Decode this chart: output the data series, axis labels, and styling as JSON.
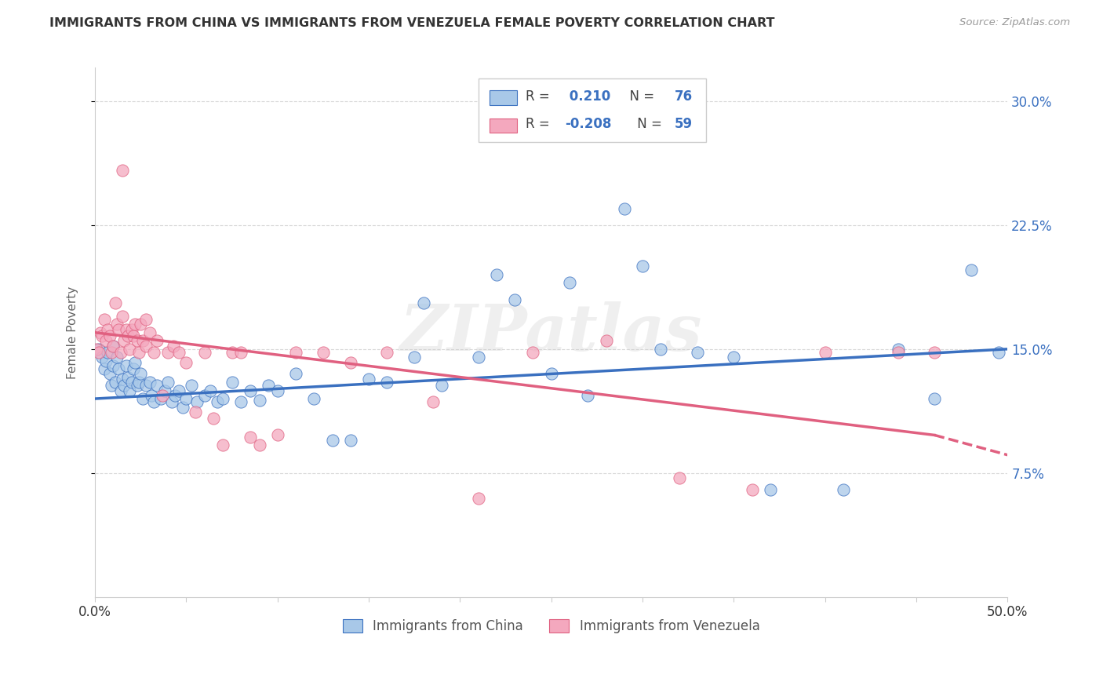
{
  "title": "IMMIGRANTS FROM CHINA VS IMMIGRANTS FROM VENEZUELA FEMALE POVERTY CORRELATION CHART",
  "source": "Source: ZipAtlas.com",
  "ylabel": "Female Poverty",
  "xlim": [
    0.0,
    0.5
  ],
  "ylim": [
    0.0,
    0.32
  ],
  "yticks": [
    0.075,
    0.15,
    0.225,
    0.3
  ],
  "ytick_labels": [
    "7.5%",
    "15.0%",
    "22.5%",
    "30.0%"
  ],
  "legend_r_china": "0.210",
  "legend_n_china": "76",
  "legend_r_venezuela": "-0.208",
  "legend_n_venezuela": "59",
  "color_china": "#a8c8e8",
  "color_venezuela": "#f4a8be",
  "line_china_color": "#3a70c0",
  "line_venezuela_color": "#e06080",
  "background_color": "#ffffff",
  "grid_color": "#d8d8d8",
  "watermark": "ZIPatlas",
  "trendline_china": [
    0.0,
    0.5,
    0.12,
    0.15
  ],
  "trendline_venezuela_solid": [
    0.0,
    0.46,
    0.16,
    0.098
  ],
  "trendline_venezuela_dash": [
    0.46,
    0.5,
    0.098,
    0.086
  ],
  "china_x": [
    0.002,
    0.004,
    0.005,
    0.006,
    0.007,
    0.008,
    0.009,
    0.01,
    0.01,
    0.011,
    0.012,
    0.013,
    0.014,
    0.015,
    0.016,
    0.017,
    0.018,
    0.019,
    0.02,
    0.021,
    0.022,
    0.023,
    0.024,
    0.025,
    0.026,
    0.028,
    0.03,
    0.031,
    0.032,
    0.034,
    0.036,
    0.038,
    0.04,
    0.042,
    0.044,
    0.046,
    0.048,
    0.05,
    0.053,
    0.056,
    0.06,
    0.063,
    0.067,
    0.07,
    0.075,
    0.08,
    0.085,
    0.09,
    0.095,
    0.1,
    0.11,
    0.12,
    0.13,
    0.14,
    0.15,
    0.16,
    0.175,
    0.19,
    0.21,
    0.23,
    0.25,
    0.27,
    0.3,
    0.33,
    0.37,
    0.41,
    0.44,
    0.46,
    0.48,
    0.495,
    0.22,
    0.26,
    0.18,
    0.35,
    0.31,
    0.29
  ],
  "china_y": [
    0.15,
    0.145,
    0.138,
    0.143,
    0.148,
    0.135,
    0.128,
    0.14,
    0.152,
    0.13,
    0.145,
    0.138,
    0.125,
    0.132,
    0.128,
    0.14,
    0.133,
    0.125,
    0.13,
    0.138,
    0.142,
    0.128,
    0.13,
    0.135,
    0.12,
    0.128,
    0.13,
    0.122,
    0.118,
    0.128,
    0.12,
    0.125,
    0.13,
    0.118,
    0.122,
    0.125,
    0.115,
    0.12,
    0.128,
    0.118,
    0.122,
    0.125,
    0.118,
    0.12,
    0.13,
    0.118,
    0.125,
    0.119,
    0.128,
    0.125,
    0.135,
    0.12,
    0.095,
    0.095,
    0.132,
    0.13,
    0.145,
    0.128,
    0.145,
    0.18,
    0.135,
    0.122,
    0.2,
    0.148,
    0.065,
    0.065,
    0.15,
    0.12,
    0.198,
    0.148,
    0.195,
    0.19,
    0.178,
    0.145,
    0.15,
    0.235
  ],
  "venezuela_x": [
    0.001,
    0.002,
    0.003,
    0.004,
    0.005,
    0.006,
    0.007,
    0.008,
    0.009,
    0.01,
    0.011,
    0.012,
    0.013,
    0.014,
    0.015,
    0.016,
    0.017,
    0.018,
    0.019,
    0.02,
    0.021,
    0.022,
    0.023,
    0.024,
    0.025,
    0.026,
    0.028,
    0.03,
    0.032,
    0.034,
    0.037,
    0.04,
    0.043,
    0.046,
    0.05,
    0.055,
    0.06,
    0.065,
    0.07,
    0.075,
    0.08,
    0.085,
    0.09,
    0.1,
    0.11,
    0.125,
    0.14,
    0.16,
    0.185,
    0.21,
    0.24,
    0.28,
    0.32,
    0.36,
    0.4,
    0.44,
    0.46,
    0.015,
    0.028
  ],
  "venezuela_y": [
    0.15,
    0.148,
    0.16,
    0.158,
    0.168,
    0.155,
    0.162,
    0.158,
    0.148,
    0.152,
    0.178,
    0.165,
    0.162,
    0.148,
    0.17,
    0.155,
    0.162,
    0.158,
    0.15,
    0.162,
    0.158,
    0.165,
    0.155,
    0.148,
    0.165,
    0.155,
    0.152,
    0.16,
    0.148,
    0.155,
    0.122,
    0.148,
    0.152,
    0.148,
    0.142,
    0.112,
    0.148,
    0.108,
    0.092,
    0.148,
    0.148,
    0.097,
    0.092,
    0.098,
    0.148,
    0.148,
    0.142,
    0.148,
    0.118,
    0.06,
    0.148,
    0.155,
    0.072,
    0.065,
    0.148,
    0.148,
    0.148,
    0.258,
    0.168
  ]
}
